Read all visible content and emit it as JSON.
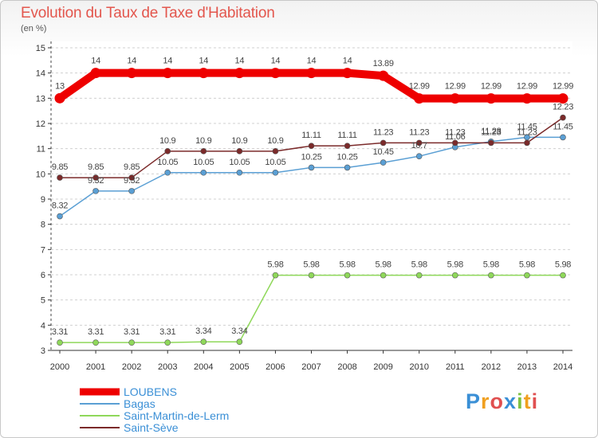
{
  "title": "Evolution du Taux de Taxe d'Habitation",
  "subtitle": "(en %)",
  "logo": {
    "text": "Proxiti",
    "letters": [
      "P",
      "r",
      "o",
      "x",
      "i",
      "t",
      "i"
    ],
    "colors": [
      "#3a8fd6",
      "#f0a020",
      "#e05050",
      "#3a8fd6",
      "#7dc242",
      "#f0a020",
      "#e05050"
    ]
  },
  "chart_data": {
    "type": "line",
    "x": [
      "2000",
      "2001",
      "2002",
      "2003",
      "2004",
      "2005",
      "2006",
      "2007",
      "2008",
      "2009",
      "2010",
      "2011",
      "2012",
      "2013",
      "2014"
    ],
    "ylim": [
      3,
      15
    ],
    "yticks": [
      "3",
      "4",
      "5",
      "6",
      "7",
      "8",
      "9",
      "10",
      "11",
      "12",
      "13",
      "14",
      "15"
    ],
    "grid": "horizontal-dashed",
    "legend_position": "bottom-left",
    "series": [
      {
        "name": "LOUBENS",
        "color": "#ee0000",
        "values": [
          13,
          14,
          14,
          14,
          14,
          14,
          14,
          14,
          14,
          13.89,
          12.99,
          12.99,
          12.99,
          12.99,
          12.99
        ],
        "labels": [
          "13",
          "14",
          "14",
          "14",
          "14",
          "14",
          "14",
          "14",
          "14",
          "13.89",
          "12.99",
          "12.99",
          "12.99",
          "12.99",
          "12.99"
        ]
      },
      {
        "name": "Bagas",
        "color": "#5a9fd4",
        "values": [
          8.32,
          9.32,
          9.32,
          10.05,
          10.05,
          10.05,
          10.05,
          10.25,
          10.25,
          10.45,
          10.7,
          11.06,
          11.28,
          11.45,
          11.45
        ],
        "labels": [
          "8.32",
          "9.32",
          "9.32",
          "10.05",
          "10.05",
          "10.05",
          "10.05",
          "10.25",
          "10.25",
          "10.45",
          "10.7",
          "11.06",
          "11.28",
          "11.45",
          "11.45"
        ]
      },
      {
        "name": "Saint-Martin-de-Lerm",
        "color": "#8fd85a",
        "values": [
          3.31,
          3.31,
          3.31,
          3.31,
          3.34,
          3.34,
          5.98,
          5.98,
          5.98,
          5.98,
          5.98,
          5.98,
          5.98,
          5.98,
          5.98
        ],
        "labels": [
          "3.31",
          "3.31",
          "3.31",
          "3.31",
          "3.34",
          "3.34",
          "5.98",
          "5.98",
          "5.98",
          "5.98",
          "5.98",
          "5.98",
          "5.98",
          "5.98",
          "5.98"
        ]
      },
      {
        "name": "Saint-Sève",
        "color": "#7b2a2a",
        "values": [
          9.85,
          9.85,
          9.85,
          10.9,
          10.9,
          10.9,
          10.9,
          11.11,
          11.11,
          11.23,
          11.23,
          11.23,
          11.23,
          11.23,
          12.23
        ],
        "labels": [
          "9.85",
          "9.85",
          "9.85",
          "10.9",
          "10.9",
          "10.9",
          "10.9",
          "11.11",
          "11.11",
          "11.23",
          "11.23",
          "11.23",
          "11.23",
          "11.23",
          "12.23"
        ]
      }
    ]
  }
}
